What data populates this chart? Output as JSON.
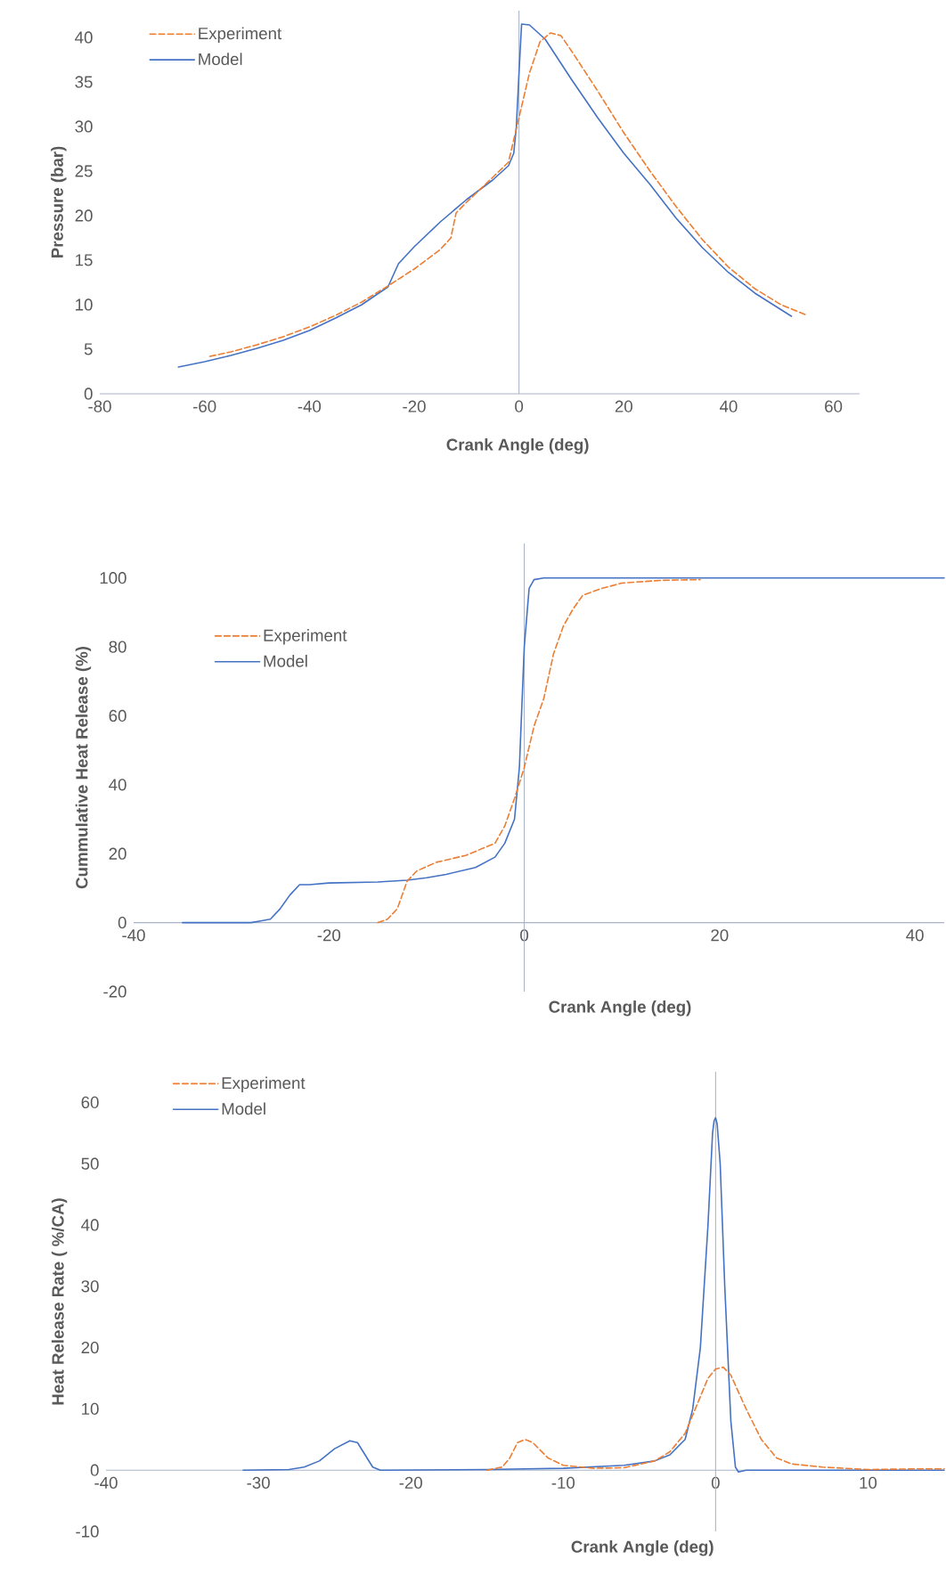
{
  "chart_data": [
    {
      "type": "line",
      "xlabel": "Crank Angle (deg)",
      "ylabel": "Pressure (bar)",
      "xlim": [
        -80,
        65
      ],
      "ylim": [
        0,
        43
      ],
      "xticks": [
        -80,
        -60,
        -40,
        -20,
        0,
        20,
        40,
        60
      ],
      "yticks": [
        0,
        5,
        10,
        15,
        20,
        25,
        30,
        35,
        40
      ],
      "legend": "top left",
      "ref_lines": [
        {
          "axis": "x",
          "value": 0,
          "color": "#a9b4c8"
        }
      ],
      "series": [
        {
          "name": "Experiment",
          "color": "#ed7d31",
          "line_style": "dashed",
          "x": [
            -59,
            -55,
            -50,
            -45,
            -40,
            -35,
            -30,
            -25,
            -20,
            -15,
            -13,
            -12,
            -10,
            -5,
            -2,
            0,
            2,
            4,
            6,
            8,
            10,
            15,
            20,
            25,
            30,
            35,
            40,
            45,
            50,
            55
          ],
          "values": [
            4.2,
            4.7,
            5.5,
            6.4,
            7.5,
            8.8,
            10.3,
            12.1,
            14.0,
            16.2,
            17.5,
            20.3,
            21.5,
            24.3,
            26.0,
            31,
            36,
            39.5,
            40.5,
            40.2,
            38.5,
            34.0,
            29.3,
            25.0,
            21.0,
            17.3,
            14.2,
            11.8,
            10.0,
            8.8
          ]
        },
        {
          "name": "Model",
          "color": "#4472c4",
          "line_style": "solid",
          "x": [
            -65,
            -60,
            -55,
            -50,
            -45,
            -40,
            -35,
            -30,
            -26,
            -25,
            -23,
            -20,
            -15,
            -10,
            -5,
            -2,
            -1,
            -0.5,
            0,
            0.5,
            2,
            5,
            10,
            15,
            20,
            25,
            30,
            35,
            40,
            45,
            52
          ],
          "values": [
            3.0,
            3.6,
            4.3,
            5.1,
            6.0,
            7.1,
            8.5,
            10.0,
            11.6,
            12.0,
            14.6,
            16.5,
            19.3,
            21.8,
            24.0,
            25.6,
            27,
            30,
            36,
            41.5,
            41.4,
            39.8,
            35.3,
            31.0,
            27.0,
            23.5,
            19.7,
            16.4,
            13.6,
            11.3,
            8.7
          ]
        }
      ]
    },
    {
      "type": "line",
      "xlabel": "Crank Angle (deg)",
      "ylabel": "Cummulative Heat Release (%)",
      "xlim": [
        -40,
        43
      ],
      "ylim": [
        -20,
        110
      ],
      "xticks": [
        -40,
        -20,
        0,
        20,
        40
      ],
      "yticks": [
        -20,
        0,
        20,
        40,
        60,
        80,
        100
      ],
      "legend": "top left",
      "ref_lines": [
        {
          "axis": "x",
          "value": 0,
          "color": "#a9b4c8"
        }
      ],
      "series": [
        {
          "name": "Experiment",
          "color": "#ed7d31",
          "line_style": "dashed",
          "x": [
            -15,
            -14,
            -13,
            -12,
            -11,
            -9,
            -6,
            -3,
            -2,
            -1,
            0,
            1,
            2,
            3,
            4,
            5,
            6,
            8,
            10,
            14,
            18
          ],
          "values": [
            0,
            1,
            4,
            12,
            15,
            17.5,
            19.5,
            23,
            28,
            36,
            45,
            57,
            65,
            78,
            86,
            91,
            95,
            97,
            98.5,
            99.3,
            99.5
          ]
        },
        {
          "name": "Model",
          "color": "#4472c4",
          "line_style": "solid",
          "x": [
            -35,
            -28,
            -27,
            -26,
            -25,
            -24,
            -23,
            -22,
            -20,
            -15,
            -12,
            -10,
            -8,
            -5,
            -3,
            -2,
            -1,
            -0.5,
            0,
            0.5,
            1,
            2,
            43
          ],
          "values": [
            0,
            0,
            0.5,
            1,
            4,
            8,
            11,
            11,
            11.5,
            11.8,
            12.3,
            13,
            14,
            16,
            19,
            23,
            30,
            45,
            80,
            97,
            99.5,
            100,
            100
          ]
        }
      ]
    },
    {
      "type": "line",
      "xlabel": "Crank Angle (deg)",
      "ylabel": "Heat Release Rate ( %/CA)",
      "xlim": [
        -40,
        15
      ],
      "ylim": [
        -10,
        65
      ],
      "xticks": [
        -40,
        -30,
        -20,
        -10,
        0,
        10
      ],
      "yticks": [
        -10,
        0,
        10,
        20,
        30,
        40,
        50,
        60
      ],
      "legend": "top left",
      "ref_lines": [
        {
          "axis": "x",
          "value": 0,
          "color": "#a9b4c8"
        }
      ],
      "series": [
        {
          "name": "Experiment",
          "color": "#ed7d31",
          "line_style": "dashed",
          "x": [
            -15,
            -14,
            -13.5,
            -13,
            -12.5,
            -12,
            -11,
            -10,
            -8,
            -6,
            -4,
            -3,
            -2,
            -1,
            -0.5,
            0,
            0.5,
            1,
            2,
            3,
            4,
            5,
            7,
            10,
            13,
            15
          ],
          "values": [
            0,
            0.5,
            2,
            4.5,
            5,
            4.5,
            2,
            0.8,
            0.3,
            0.4,
            1.5,
            3,
            6,
            12,
            15,
            16.5,
            16.8,
            15.5,
            10,
            5,
            2,
            1,
            0.5,
            0.1,
            0.2,
            0.2
          ]
        },
        {
          "name": "Model",
          "color": "#4472c4",
          "line_style": "solid",
          "x": [
            -31,
            -28,
            -27,
            -26,
            -25,
            -24,
            -23.5,
            -23,
            -22.5,
            -22,
            -15,
            -10,
            -6,
            -4,
            -3,
            -2,
            -1.5,
            -1,
            -0.5,
            -0.2,
            -0.1,
            0,
            0.1,
            0.3,
            0.6,
            1,
            1.3,
            1.5,
            2,
            15
          ],
          "values": [
            0,
            0.1,
            0.5,
            1.5,
            3.5,
            4.8,
            4.5,
            2.5,
            0.5,
            0,
            0.1,
            0.3,
            0.8,
            1.5,
            2.5,
            5,
            10,
            20,
            40,
            55,
            57,
            57.5,
            56.5,
            50,
            30,
            8,
            0.5,
            -0.3,
            0,
            0
          ]
        }
      ]
    }
  ]
}
